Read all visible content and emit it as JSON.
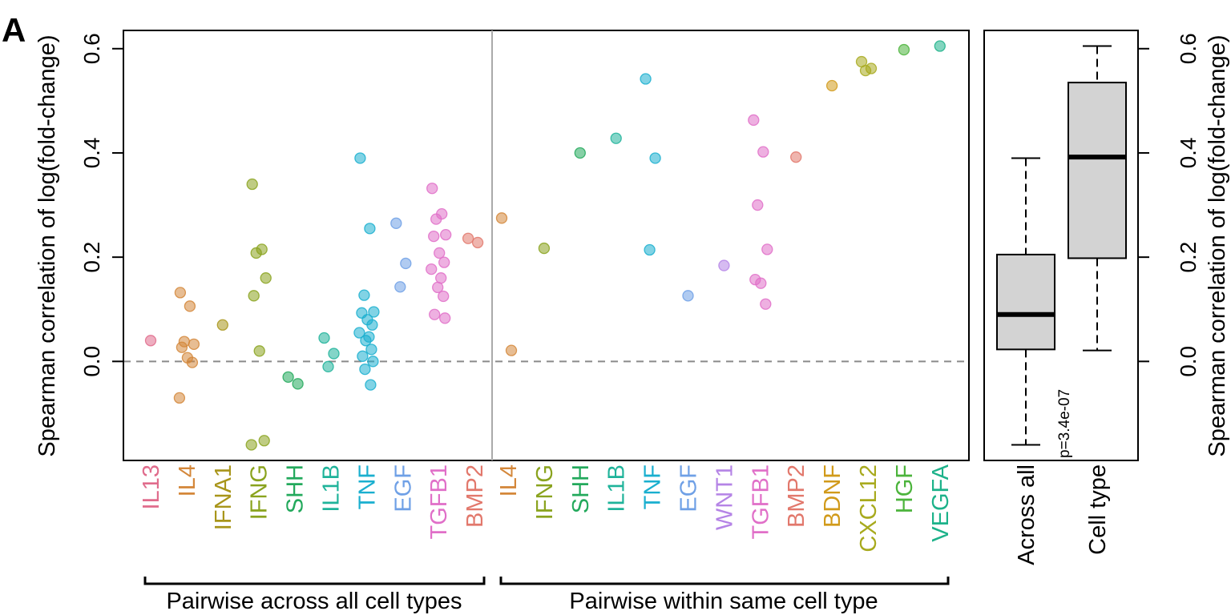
{
  "panel_label": "A",
  "chart_data": [
    {
      "type": "scatter",
      "ylabel": "Spearman correlation of log(fold-change)",
      "ylim": [
        -0.19,
        0.635
      ],
      "yticks": [
        0.0,
        0.2,
        0.4,
        0.6
      ],
      "ytick_labels": [
        "0.0",
        "0.2",
        "0.4",
        "0.6"
      ],
      "reference_line": 0,
      "groups": [
        {
          "label": "Pairwise across all cell types",
          "categories": [
            {
              "name": "IL13",
              "color": "#E06C8C",
              "values": [
                0.04
              ]
            },
            {
              "name": "IL4",
              "color": "#D4873A",
              "values": [
                0.132,
                0.106,
                0.038,
                0.033,
                0.027,
                0.007,
                -0.002,
                -0.07
              ]
            },
            {
              "name": "IFNA1",
              "color": "#A8951A",
              "values": [
                0.07
              ]
            },
            {
              "name": "IFNG",
              "color": "#8AA31E",
              "values": [
                0.34,
                0.215,
                0.208,
                0.16,
                0.126,
                0.02,
                -0.152,
                -0.16
              ]
            },
            {
              "name": "SHH",
              "color": "#23A95C",
              "values": [
                -0.03,
                -0.043
              ]
            },
            {
              "name": "IL1B",
              "color": "#1FB39A",
              "values": [
                0.045,
                0.015,
                -0.01
              ]
            },
            {
              "name": "TNF",
              "color": "#1AAFCF",
              "values": [
                0.39,
                0.255,
                0.127,
                0.095,
                0.093,
                0.08,
                0.07,
                0.055,
                0.047,
                0.04,
                0.023,
                0.01,
                0.0,
                -0.015,
                -0.045
              ]
            },
            {
              "name": "EGF",
              "color": "#6FA0E6",
              "values": [
                0.265,
                0.188,
                0.143
              ]
            },
            {
              "name": "TGFB1",
              "color": "#E06FC8",
              "values": [
                0.332,
                0.283,
                0.273,
                0.243,
                0.24,
                0.208,
                0.19,
                0.177,
                0.16,
                0.142,
                0.125,
                0.09,
                0.083
              ]
            },
            {
              "name": "BMP2",
              "color": "#E2786C",
              "values": [
                0.236,
                0.228
              ]
            }
          ]
        },
        {
          "label": "Pairwise within same cell type",
          "categories": [
            {
              "name": "IL4",
              "color": "#D4873A",
              "values": [
                0.275,
                0.021
              ]
            },
            {
              "name": "IFNG",
              "color": "#8AA31E",
              "values": [
                0.217
              ]
            },
            {
              "name": "SHH",
              "color": "#23A95C",
              "values": [
                0.4
              ]
            },
            {
              "name": "IL1B",
              "color": "#1FB39A",
              "values": [
                0.428
              ]
            },
            {
              "name": "TNF",
              "color": "#1AAFCF",
              "values": [
                0.542,
                0.39,
                0.214
              ]
            },
            {
              "name": "EGF",
              "color": "#6FA0E6",
              "values": [
                0.126
              ]
            },
            {
              "name": "WNT1",
              "color": "#B584E6",
              "values": [
                0.184
              ]
            },
            {
              "name": "TGFB1",
              "color": "#E06FC8",
              "values": [
                0.463,
                0.402,
                0.3,
                0.215,
                0.157,
                0.15,
                0.11
              ]
            },
            {
              "name": "BMP2",
              "color": "#E2786C",
              "values": [
                0.392
              ]
            },
            {
              "name": "BDNF",
              "color": "#D19A1A",
              "values": [
                0.529
              ]
            },
            {
              "name": "CXCL12",
              "color": "#A8AA1E",
              "values": [
                0.575,
                0.562,
                0.558
              ]
            },
            {
              "name": "HGF",
              "color": "#4CB43C",
              "values": [
                0.598
              ]
            },
            {
              "name": "VEGFA",
              "color": "#1DB28A",
              "values": [
                0.605
              ]
            }
          ]
        }
      ]
    },
    {
      "type": "box",
      "ylabel": "Spearman correlation of log(fold-change)",
      "ylim": [
        -0.19,
        0.635
      ],
      "yticks": [
        0.0,
        0.2,
        0.4,
        0.6
      ],
      "ytick_labels": [
        "0.0",
        "0.2",
        "0.4",
        "0.6"
      ],
      "boxes": [
        {
          "name": "Across all",
          "min": -0.16,
          "q1": 0.023,
          "median": 0.09,
          "q3": 0.205,
          "max": 0.39
        },
        {
          "name": "Cell type",
          "min": 0.021,
          "q1": 0.198,
          "median": 0.392,
          "q3": 0.535,
          "max": 0.605
        }
      ],
      "annotation": "p=3.4e-07",
      "box_fill": "#D3D3D3"
    }
  ]
}
